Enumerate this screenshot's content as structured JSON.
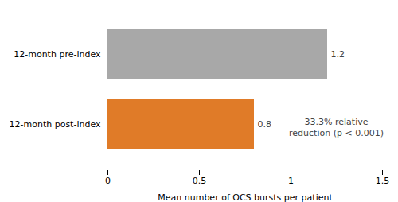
{
  "chart_data": {
    "type": "bar",
    "orientation": "horizontal",
    "categories": [
      "12-month pre-index",
      "12-month post-index"
    ],
    "values": [
      1.2,
      0.8
    ],
    "colors": [
      "#a8a8a8",
      "#e07b28"
    ],
    "xlabel": "Mean number of OCS bursts per patient",
    "xlim": [
      0,
      1.5
    ],
    "xticks": [
      0,
      0.5,
      1,
      1.5
    ],
    "annotations": [
      "33.3% relative",
      "reduction (p < 0.001)"
    ],
    "data_labels": true,
    "grid": false
  }
}
